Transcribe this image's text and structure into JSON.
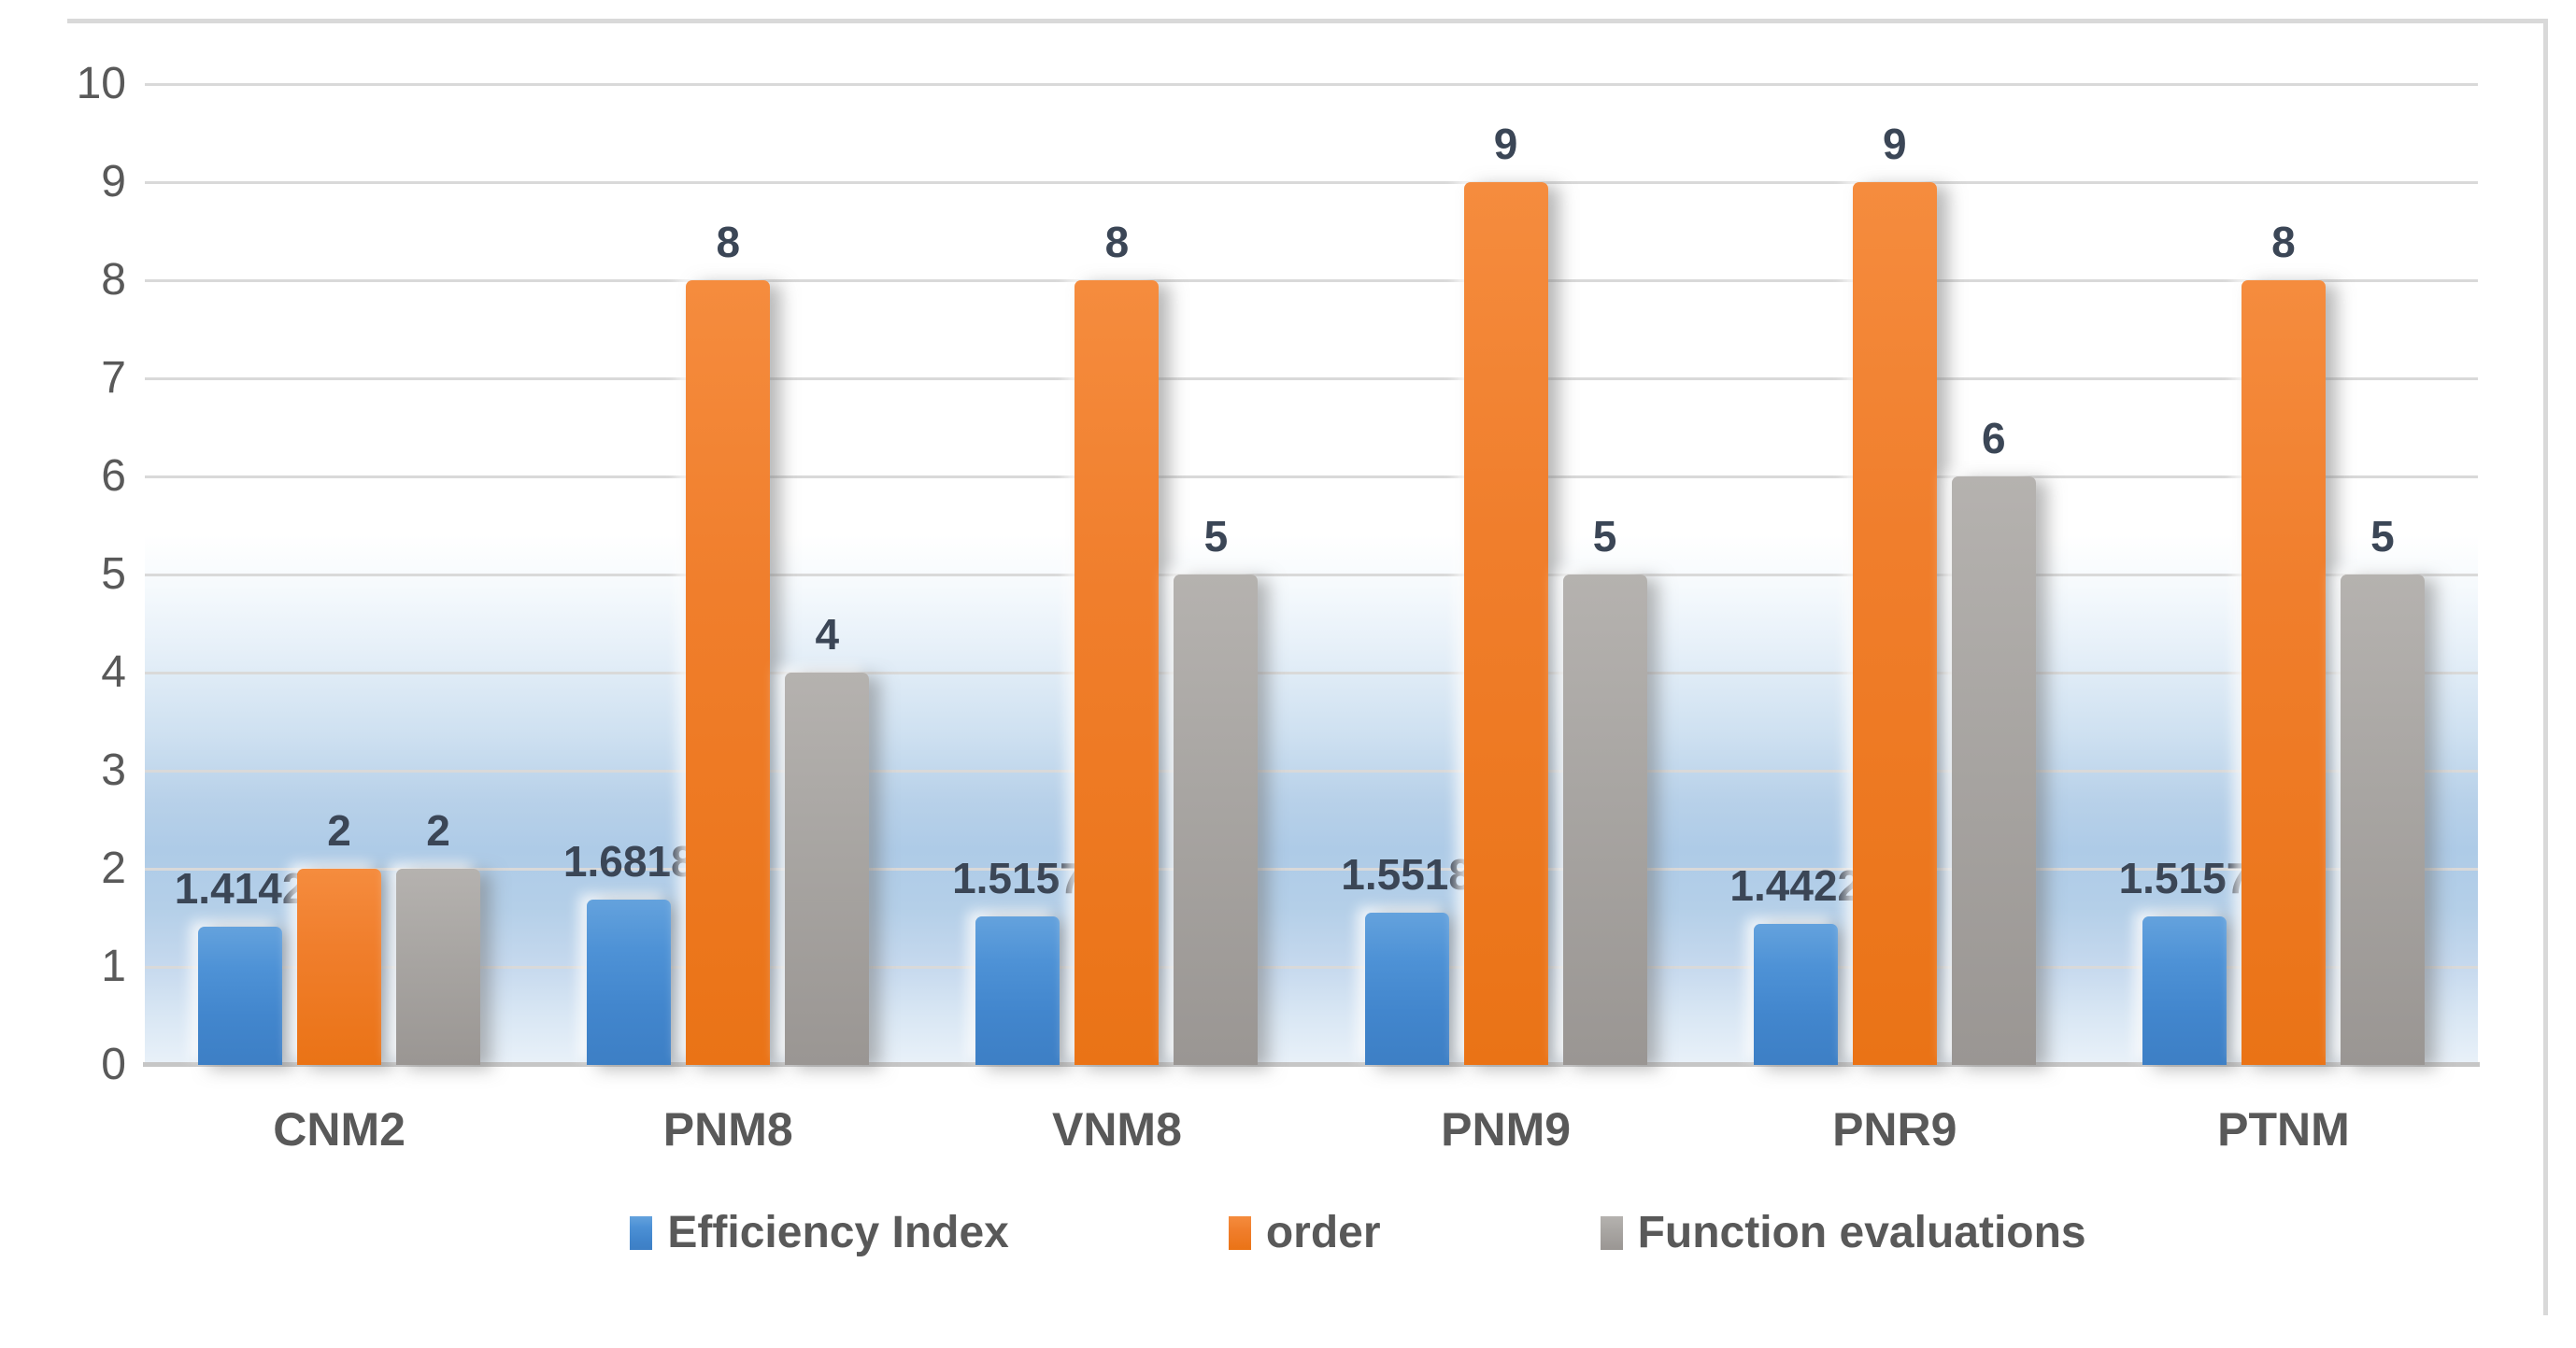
{
  "chart_data": {
    "type": "bar",
    "categories": [
      "CNM2",
      "PNM8",
      "VNM8",
      "PNM9",
      "PNR9",
      "PTNM"
    ],
    "series": [
      {
        "name": "Efficiency Index",
        "color": "#4a8cd3",
        "values": [
          1.4142,
          1.6818,
          1.5157,
          1.5518,
          1.4422,
          1.5157
        ],
        "labels": [
          "1.4142",
          "1.6818",
          "1.5157",
          "1.5518",
          "1.4422",
          "1.5157"
        ]
      },
      {
        "name": "order",
        "color": "#ed7d31",
        "values": [
          2,
          8,
          8,
          9,
          9,
          8
        ],
        "labels": [
          "2",
          "8",
          "8",
          "9",
          "9",
          "8"
        ]
      },
      {
        "name": "Function evaluations",
        "color": "#a6a3a1",
        "values": [
          2,
          4,
          5,
          5,
          6,
          5
        ],
        "labels": [
          "2",
          "4",
          "5",
          "5",
          "6",
          "5"
        ]
      }
    ],
    "title": "",
    "xlabel": "",
    "ylabel": "",
    "ylim": [
      0,
      10
    ],
    "yticks": [
      0,
      1,
      2,
      3,
      4,
      5,
      6,
      7,
      8,
      9,
      10
    ],
    "grid": true,
    "legend_position": "bottom"
  },
  "colors": {
    "gridline": "#d9d9d9",
    "axis_line": "#c6c6c6",
    "tick_label": "#595959",
    "category_label": "#595959",
    "data_label": "#3b4656",
    "legend_label": "#595959",
    "chart_border": "#d9d9d9",
    "plot_gradient_peak": "#aecbe7",
    "series_blue": "#4a8cd3",
    "series_orange": "#ed7d31",
    "series_gray": "#a6a3a1"
  }
}
